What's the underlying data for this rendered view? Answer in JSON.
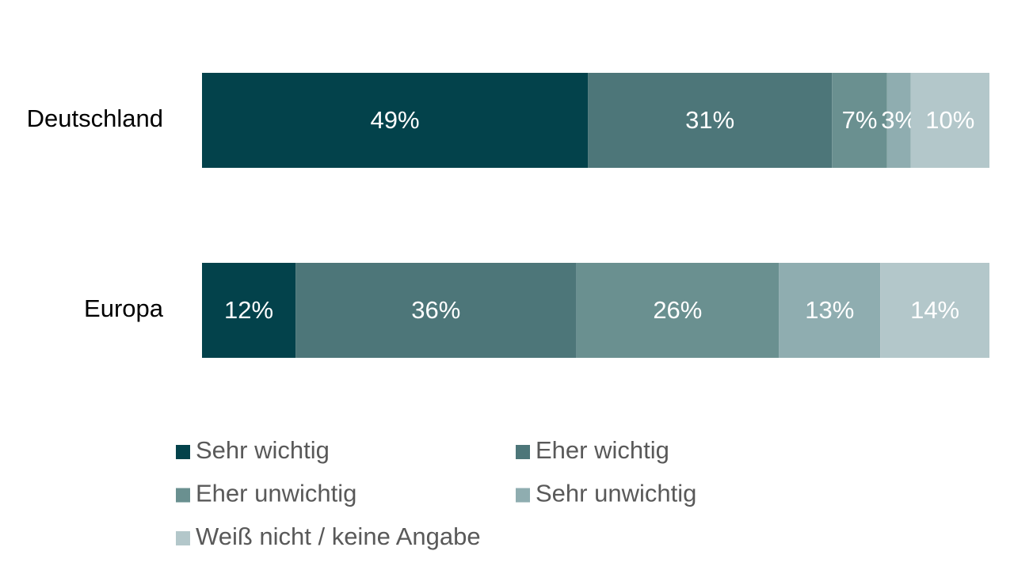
{
  "chart_data": {
    "type": "stacked_bar_100",
    "categories": [
      "Deutschland",
      "Europa"
    ],
    "series": [
      {
        "name": "Sehr wichtig",
        "color": "#03424b",
        "values": [
          49,
          12
        ],
        "value_labels": [
          "49%",
          "12%"
        ]
      },
      {
        "name": "Eher wichtig",
        "color": "#4d7679",
        "values": [
          31,
          36
        ],
        "value_labels": [
          "31%",
          "36%"
        ]
      },
      {
        "name": "Eher unwichtig",
        "color": "#6a9090",
        "values": [
          7,
          26
        ],
        "value_labels": [
          "7%",
          "26%"
        ]
      },
      {
        "name": "Sehr unwichtig",
        "color": "#8fadb0",
        "values": [
          3,
          13
        ],
        "value_labels": [
          "3%",
          "13%"
        ]
      },
      {
        "name": "Weiß nicht / keine Angabe",
        "color": "#b3c7ca",
        "values": [
          10,
          14
        ],
        "value_labels": [
          "10%",
          "14%"
        ]
      }
    ]
  }
}
